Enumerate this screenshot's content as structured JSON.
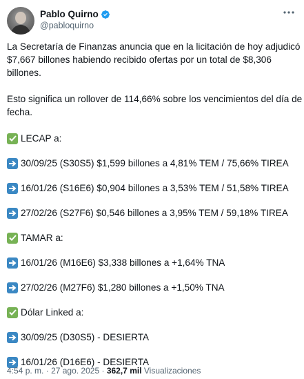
{
  "author": {
    "display_name": "Pablo Quirno",
    "handle": "@pabloquirno"
  },
  "tweet": {
    "para1": [
      "La Secretaría de Finanzas anuncia que en la licitación de hoy adjudicó",
      "$7,667 billones habiendo recibido ofertas por un total de $8,306",
      "billones."
    ],
    "para2": [
      "Esto significa un rollover de 114,66% sobre los vencimientos del día de la",
      "fecha."
    ],
    "lecap_header": "LECAP a:",
    "lecap_items": [
      "30/09/25 (S30S5) $1,599 billones a 4,81% TEM / 75,66% TIREA",
      "16/01/26 (S16E6) $0,904 billones a 3,53% TEM / 51,58% TIREA",
      "27/02/26 (S27F6) $0,546 billones a 3,95% TEM / 59,18% TIREA"
    ],
    "tamar_header": "TAMAR a:",
    "tamar_items": [
      "16/01/26 (M16E6) $3,338 billones a +1,64% TNA",
      "27/02/26 (M27F6) $1,280 billones a +1,50% TNA"
    ],
    "dolar_header": "Dólar Linked a:",
    "dolar_items": [
      "30/09/25 (D30S5) - DESIERTA",
      "16/01/26 (D16E6) - DESIERTA"
    ]
  },
  "footer": {
    "time": "4:54 p. m.",
    "separator": "·",
    "date": "27 ago. 2025",
    "views_count": "362,7 mil",
    "views_label": "Visualizaciones"
  },
  "icons": {
    "check": "white-check-mark-icon",
    "arrow": "right-arrow-icon",
    "verified": "verified-badge-icon",
    "more": "more-icon"
  },
  "colors": {
    "text": "#0f1419",
    "secondary": "#536471",
    "verified": "#1d9bf0",
    "check_bg": "#77b255",
    "arrow_bg": "#3b88c3"
  }
}
